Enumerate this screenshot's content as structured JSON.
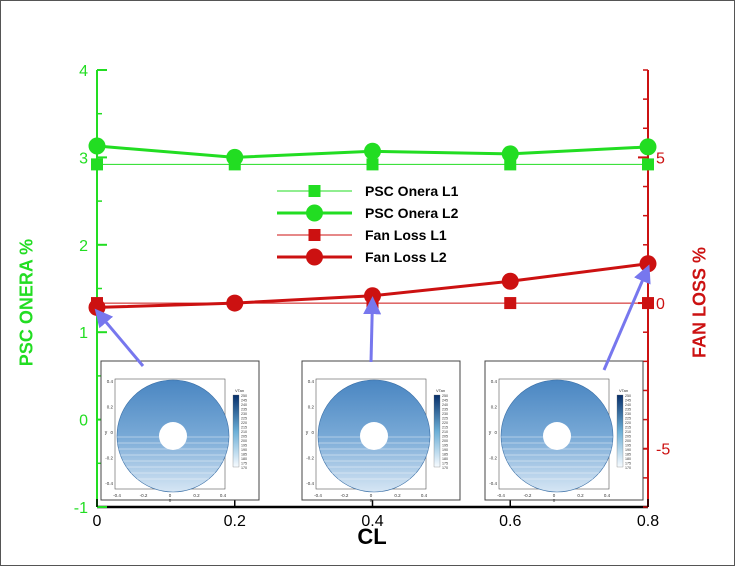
{
  "chart_data": {
    "type": "line",
    "x": [
      0,
      0.2,
      0.4,
      0.6,
      0.8
    ],
    "xlabel": "CL",
    "xlim": [
      0,
      0.8
    ],
    "xticks": [
      "0",
      "0.2",
      "0.4",
      "0.6",
      "0.8"
    ],
    "ylabel_left": "PSC ONERA %",
    "ylim_left": [
      -1,
      4
    ],
    "yticks_left": [
      "-1",
      "0",
      "1",
      "2",
      "3",
      "4"
    ],
    "ylabel_right": "FAN LOSS %",
    "ylim_right": [
      -7,
      8
    ],
    "yticks_right": [
      "-5",
      "0",
      "5"
    ],
    "series": [
      {
        "name": "PSC Onera L1",
        "axis": "left",
        "marker": "square",
        "color": "#22dd22",
        "line_weight": "thin",
        "values": [
          2.92,
          2.92,
          2.92,
          2.92,
          2.92
        ]
      },
      {
        "name": "PSC Onera L2",
        "axis": "left",
        "marker": "circle",
        "color": "#22dd22",
        "line_weight": "thick",
        "values": [
          3.13,
          3.0,
          3.07,
          3.04,
          3.12
        ]
      },
      {
        "name": "Fan Loss L1",
        "axis": "right",
        "marker": "square",
        "color": "#cc1111",
        "line_weight": "thin",
        "values": [
          0,
          0,
          0,
          0,
          0
        ]
      },
      {
        "name": "Fan Loss L2",
        "axis": "right",
        "marker": "circle",
        "color": "#cc1111",
        "line_weight": "thick",
        "values": [
          -0.15,
          0.0,
          0.25,
          0.75,
          1.35
        ]
      }
    ],
    "legend": "center",
    "grid": false
  },
  "insets": [
    {
      "points_to_x": 0,
      "ticks_x": [
        "-0.4",
        "-0.2",
        "0",
        "0.2",
        "0.4"
      ],
      "ticks_y": [
        "0.4",
        "0.2",
        "0",
        "-0.2",
        "-0.4"
      ],
      "xlabel": "x",
      "ylabel": "y"
    },
    {
      "points_to_x": 0.4,
      "ticks_x": [
        "-0.4",
        "-0.2",
        "0",
        "0.2",
        "0.4"
      ],
      "ticks_y": [
        "0.4",
        "0.2",
        "0",
        "-0.2",
        "-0.4"
      ],
      "xlabel": "x",
      "ylabel": "y"
    },
    {
      "points_to_x": 0.8,
      "ticks_x": [
        "-0.4",
        "-0.2",
        "0",
        "0.2",
        "0.4"
      ],
      "ticks_y": [
        "0.4",
        "0.2",
        "0",
        "-0.2",
        "-0.4"
      ],
      "xlabel": "x",
      "ylabel": "y"
    }
  ],
  "inset_colorbar_title": "VTan",
  "inset_colorbar_labels": [
    "250",
    "245",
    "240",
    "235",
    "230",
    "225",
    "220",
    "215",
    "210",
    "205",
    "200",
    "195",
    "190",
    "185",
    "180",
    "175",
    "170"
  ]
}
